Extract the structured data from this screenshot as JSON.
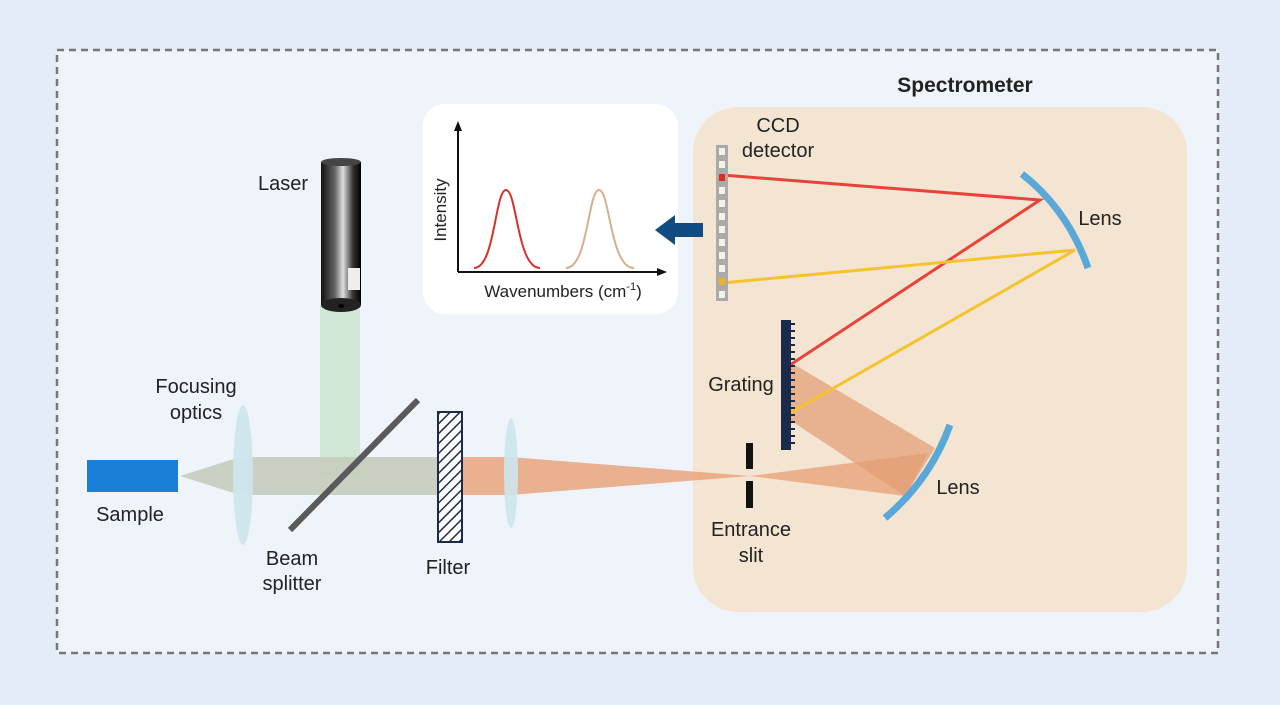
{
  "title": "Spectrometer",
  "labels": {
    "ccd": [
      "CCD",
      "detector"
    ],
    "lens_upper": "Lens",
    "lens_lower": "Lens",
    "laser": "Laser",
    "grating": "Grating",
    "focusing_optics": [
      "Focusing",
      "optics"
    ],
    "sample": "Sample",
    "beam_splitter": [
      "Beam",
      "splitter"
    ],
    "filter": "Filter",
    "entrance_slit": [
      "Entrance",
      "slit"
    ]
  },
  "plot": {
    "y_label": "Intensity",
    "x_label": {
      "main": "Wavenumbers (cm",
      "superscript": "-1",
      "close": ")"
    }
  }
}
